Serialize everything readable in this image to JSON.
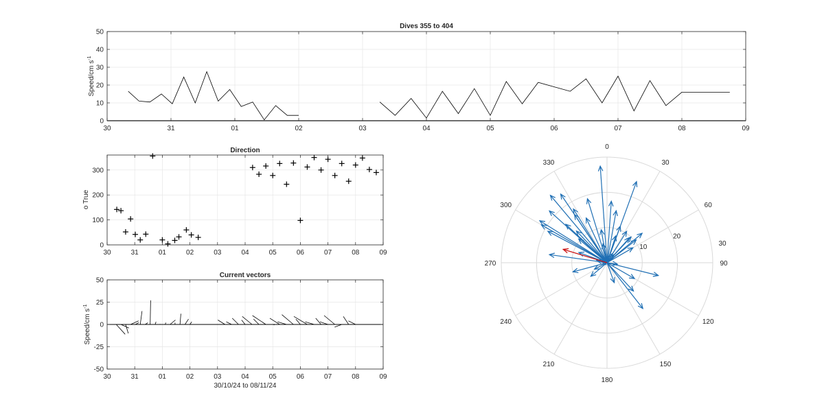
{
  "speed_panel": {
    "title": "Dives 355 to 404",
    "ylabel": "Speed/cm s",
    "ylabel_exp": "-1"
  },
  "direction_panel": {
    "title": "Direction",
    "ylabel": "o True"
  },
  "vector_panel": {
    "title": "Current vectors",
    "ylabel": "Speed/cm s",
    "ylabel_exp": "-1",
    "xlabel": "30/10/24 to 08/11/24"
  },
  "polar_panel": {
    "radius_label": "30"
  },
  "chart_data": [
    {
      "type": "line",
      "name": "speed",
      "title": "Dives 355 to 404",
      "xlabel": "",
      "ylabel": "Speed/cm s-1",
      "x_ticks": [
        "30",
        "31",
        "01",
        "02",
        "03",
        "04",
        "05",
        "06",
        "07",
        "08",
        "09"
      ],
      "xlim": [
        0,
        10
      ],
      "ylim": [
        0,
        50
      ],
      "y_ticks": [
        0,
        10,
        20,
        30,
        40,
        50
      ],
      "grid": true,
      "segments": [
        {
          "x": [
            0.33,
            0.5,
            0.67,
            0.85,
            1.02,
            1.2,
            1.38,
            1.56,
            1.74,
            1.92,
            2.1,
            2.28,
            2.46,
            2.64,
            2.82,
            3.0
          ],
          "y": [
            16.5,
            11,
            10.5,
            15,
            9.5,
            24.5,
            10,
            27.5,
            11,
            17.5,
            8,
            10.5,
            0.5,
            8.5,
            3,
            3
          ]
        },
        {
          "x": [
            4.27,
            4.51,
            4.76,
            5.0,
            5.25,
            5.5,
            5.75,
            6.0,
            6.25,
            6.5,
            6.75,
            7.0,
            7.25,
            7.5,
            7.75,
            8.0,
            8.25,
            8.5,
            8.75,
            9.0,
            9.25,
            9.5,
            9.75
          ],
          "y": [
            10.5,
            3,
            12.5,
            1.5,
            16.5,
            4,
            18,
            3,
            22,
            9.5,
            21.5,
            19,
            16.5,
            23.5,
            10,
            25,
            5.5,
            22.5,
            8.5,
            16,
            16,
            16,
            16
          ]
        }
      ]
    },
    {
      "type": "scatter",
      "name": "direction",
      "title": "Direction",
      "xlabel": "",
      "ylabel": "o True",
      "x_ticks": [
        "30",
        "31",
        "01",
        "02",
        "03",
        "04",
        "05",
        "06",
        "07",
        "08",
        "09"
      ],
      "xlim": [
        0,
        10
      ],
      "ylim": [
        0,
        360
      ],
      "y_ticks": [
        0,
        100,
        200,
        300
      ],
      "grid": true,
      "marker": "+",
      "x": [
        0.35,
        0.5,
        0.67,
        0.85,
        1.02,
        1.2,
        1.4,
        1.65,
        2.0,
        2.2,
        2.45,
        2.6,
        2.87,
        3.05,
        3.3,
        5.27,
        5.5,
        5.75,
        6.0,
        6.25,
        6.5,
        6.75,
        7.0,
        7.25,
        7.5,
        7.75,
        8.0,
        8.25,
        8.5,
        8.75,
        9.0,
        9.25,
        9.5,
        9.75
      ],
      "y": [
        142,
        137,
        52,
        104,
        42,
        20,
        43,
        356,
        20,
        4,
        18,
        32,
        60,
        40,
        30,
        310,
        283,
        316,
        278,
        326,
        243,
        328,
        98,
        312,
        350,
        300,
        343,
        278,
        326,
        255,
        320,
        348,
        302,
        290
      ]
    },
    {
      "type": "quiver",
      "name": "current_vectors",
      "title": "Current vectors",
      "xlabel": "30/10/24 to 08/11/24",
      "ylabel": "Speed/cm s-1",
      "x_ticks": [
        "30",
        "31",
        "01",
        "02",
        "03",
        "04",
        "05",
        "06",
        "07",
        "08",
        "09"
      ],
      "xlim": [
        0,
        10
      ],
      "ylim": [
        -50,
        50
      ],
      "y_ticks": [
        -50,
        -25,
        0,
        25,
        50
      ],
      "grid": true,
      "x": [
        0.33,
        0.5,
        0.67,
        0.85,
        1.02,
        1.2,
        1.38,
        1.56,
        1.74,
        1.92,
        2.1,
        2.28,
        2.46,
        2.64,
        2.82,
        3.0,
        4.27,
        4.51,
        4.76,
        5.0,
        5.25,
        5.5,
        5.75,
        6.0,
        6.25,
        6.5,
        6.75,
        7.0,
        7.25,
        7.5,
        7.75,
        8.0,
        8.25,
        8.5,
        8.75,
        9.0
      ],
      "u": [
        10,
        9,
        3,
        9,
        4,
        2,
        3,
        0.5,
        1,
        0,
        1,
        6,
        0,
        1,
        4,
        2,
        -8,
        -6,
        -7,
        -4,
        -11,
        -6,
        -15,
        2,
        -11,
        -10,
        -13,
        -5,
        -15,
        -10,
        -6,
        -9,
        -12,
        -8,
        -6,
        -8
      ],
      "v": [
        -11,
        -4,
        -10,
        4,
        2,
        15,
        2,
        27,
        3,
        0.5,
        2,
        5,
        2,
        12,
        6,
        3,
        5,
        3,
        7,
        5,
        9,
        6,
        10,
        -0.5,
        7,
        3,
        11,
        6,
        9,
        3,
        7,
        3,
        10,
        -3,
        9,
        4
      ]
    },
    {
      "type": "polar_compass",
      "name": "direction_rose",
      "theta_ticks": [
        0,
        30,
        60,
        90,
        120,
        150,
        180,
        210,
        240,
        270,
        300,
        330
      ],
      "r_ticks": [
        10,
        20,
        30
      ],
      "rlim": [
        0,
        30
      ],
      "vectors": [
        {
          "dir": 142,
          "speed": 16.5
        },
        {
          "dir": 137,
          "speed": 11
        },
        {
          "dir": 52,
          "speed": 10.5
        },
        {
          "dir": 104,
          "speed": 15
        },
        {
          "dir": 42,
          "speed": 9.5
        },
        {
          "dir": 20,
          "speed": 24.5
        },
        {
          "dir": 43,
          "speed": 10
        },
        {
          "dir": 356,
          "speed": 27.5
        },
        {
          "dir": 20,
          "speed": 11
        },
        {
          "dir": 4,
          "speed": 17.5
        },
        {
          "dir": 18,
          "speed": 8
        },
        {
          "dir": 32,
          "speed": 10.5
        },
        {
          "dir": 60,
          "speed": 8.5
        },
        {
          "dir": 40,
          "speed": 3
        },
        {
          "dir": 30,
          "speed": 3
        },
        {
          "dir": 310,
          "speed": 10.5
        },
        {
          "dir": 283,
          "speed": 3
        },
        {
          "dir": 316,
          "speed": 12.5
        },
        {
          "dir": 278,
          "speed": 1.5
        },
        {
          "dir": 326,
          "speed": 16.5
        },
        {
          "dir": 243,
          "speed": 4
        },
        {
          "dir": 328,
          "speed": 18
        },
        {
          "dir": 98,
          "speed": 3
        },
        {
          "dir": 312,
          "speed": 22
        },
        {
          "dir": 350,
          "speed": 9.5
        },
        {
          "dir": 300,
          "speed": 21.5
        },
        {
          "dir": 343,
          "speed": 19
        },
        {
          "dir": 278,
          "speed": 16.5
        },
        {
          "dir": 326,
          "speed": 23.5
        },
        {
          "dir": 255,
          "speed": 10
        },
        {
          "dir": 320,
          "speed": 25
        },
        {
          "dir": 348,
          "speed": 5.5
        },
        {
          "dir": 302,
          "speed": 22.5
        },
        {
          "dir": 290,
          "speed": 8.5
        },
        {
          "dir": 313,
          "speed": 16
        },
        {
          "dir": 335,
          "speed": 14
        },
        {
          "dir": 298,
          "speed": 19
        },
        {
          "dir": 10,
          "speed": 15
        },
        {
          "dir": 120,
          "speed": 9
        },
        {
          "dir": 160,
          "speed": 6
        },
        {
          "dir": 230,
          "speed": 6
        },
        {
          "dir": 50,
          "speed": 13
        }
      ],
      "mean_vector": {
        "dir": 287,
        "speed": 13,
        "color": "#cc1111"
      },
      "vector_color": "#1f6fb4"
    }
  ],
  "colors": {
    "axis": "#262626",
    "grid": "#e6e6e6",
    "polar_grid": "#d9d9d9",
    "line": "#000000",
    "vector": "#1f6fb4",
    "mean_vector": "#cc1111"
  }
}
